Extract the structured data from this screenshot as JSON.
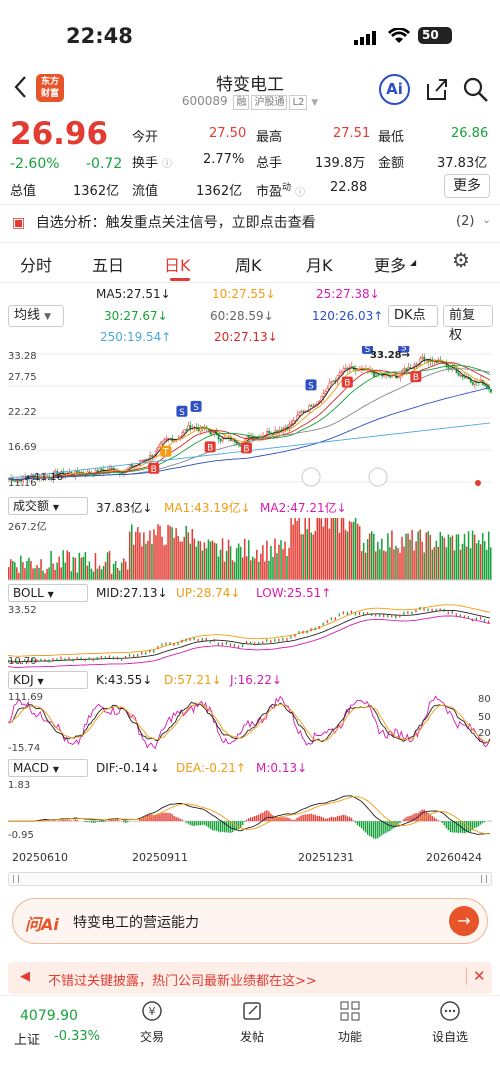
{
  "status": {
    "time": "22:48",
    "battery": "50"
  },
  "header": {
    "logo_text_1": "东方",
    "logo_text_2": "财富",
    "title": "特变电工",
    "code": "600089",
    "tags": [
      "融",
      "沪股通",
      "L2"
    ],
    "ai_label": "Ai"
  },
  "quote": {
    "price": "26.96",
    "change_pct": "-2.60%",
    "change": "-0.72",
    "open_label": "今开",
    "open": "27.50",
    "high_label": "最高",
    "high": "27.51",
    "low_label": "最低",
    "low": "26.86",
    "turnover_label": "换手",
    "turnover": "2.77%",
    "volume_label": "总手",
    "volume": "139.8万",
    "amount_label": "金额",
    "amount": "37.83亿",
    "mktcap_label": "总值",
    "mktcap": "1362亿",
    "float_label": "流值",
    "float": "1362亿",
    "pe_label": "市盈",
    "pe_sup": "动",
    "pe": "22.88",
    "more": "更多"
  },
  "analysis": {
    "text": "自选分析：触发重点关注信号，立即点击查看",
    "count": "(2)"
  },
  "tabs": [
    "分时",
    "五日",
    "日K",
    "周K",
    "月K",
    "更多"
  ],
  "ma": {
    "row1": [
      "MA5:27.51↓",
      "10:27.55↓",
      "25:27.38↓"
    ],
    "row2": [
      "30:27.67↓",
      "60:28.59↓",
      "120:26.03↑"
    ],
    "row3": [
      "250:19.54↑",
      "20:27.13↓"
    ],
    "selector": "均线",
    "dk": "DK点",
    "adjust": "前复权"
  },
  "kline_axis": {
    "top": "33.28",
    "l1": "27.75",
    "l2": "22.22",
    "l3": "16.69",
    "bottom": "11.16",
    "high_mark": "33.28",
    "low_mark": "11.16"
  },
  "volume_panel": {
    "name": "成交额",
    "value": "37.83亿↓",
    "ma1": "MA1:43.19亿↓",
    "ma2": "MA2:47.21亿↓",
    "top": "267.2亿"
  },
  "boll_panel": {
    "name": "BOLL",
    "mid": "MID:27.13↓",
    "up": "UP:28.74↓",
    "low": "LOW:25.51↑",
    "top": "33.52",
    "bottom": "10.70"
  },
  "kdj_panel": {
    "name": "KDJ",
    "k": "K:43.55↓",
    "d": "D:57.21↓",
    "j": "J:16.22↓",
    "top": "111.69",
    "bottom": "-15.74",
    "r80": "80",
    "r50": "50",
    "r20": "20"
  },
  "macd_panel": {
    "name": "MACD",
    "dif": "DIF:-0.14↓",
    "dea": "DEA:-0.21↑",
    "m": "M:0.13↓",
    "top": "1.83",
    "bottom": "-0.95"
  },
  "dates": [
    "20250610",
    "20250911",
    "20251231",
    "20260424"
  ],
  "askai": {
    "logo": "问Ai",
    "text": "特变电工的营运能力"
  },
  "notice": {
    "text": "不错过关键披露，热门公司最新业绩都在这>>"
  },
  "bottom_nav": {
    "index_value": "4079.90",
    "index_name": "上证",
    "index_change": "-0.33%",
    "items": [
      "交易",
      "发帖",
      "功能",
      "设自选"
    ]
  },
  "colors": {
    "up": "#e33b32",
    "down": "#17a23b",
    "accent": "#2d4ec4"
  },
  "chart_data": {
    "type": "candlestick",
    "price_range": [
      11.16,
      33.28
    ],
    "dates": [
      "20250610",
      "20250911",
      "20251231",
      "20260424"
    ],
    "last_close": 26.96
  }
}
